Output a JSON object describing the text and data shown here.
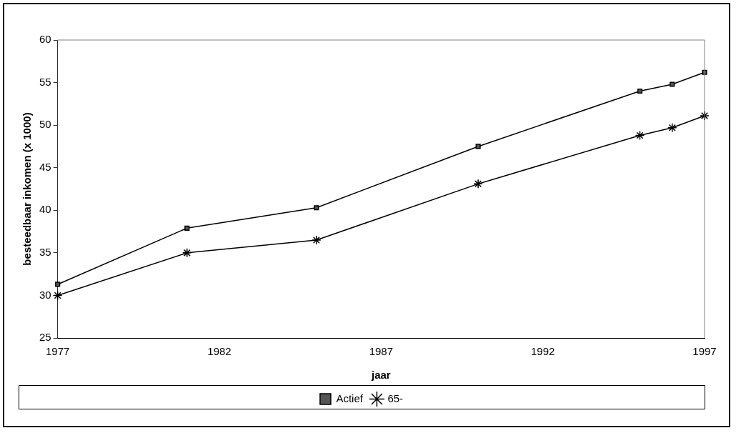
{
  "chart_data": {
    "type": "line",
    "xlabel": "jaar",
    "ylabel": "besteedbaar inkomen (x 1000)",
    "x": [
      1977,
      1981,
      1985,
      1990,
      1995,
      1996,
      1997
    ],
    "series": [
      {
        "name": "Actief",
        "color": "#000000",
        "marker": "square",
        "values": [
          31.3,
          37.9,
          40.3,
          47.5,
          54.0,
          54.8,
          56.2
        ]
      },
      {
        "name": "65-",
        "color": "#000000",
        "marker": "cross",
        "values": [
          30.0,
          35.0,
          36.5,
          43.1,
          48.8,
          49.7,
          51.1
        ]
      }
    ],
    "xlim": [
      1977,
      1997
    ],
    "xticks": [
      1977,
      1982,
      1987,
      1992,
      1997
    ],
    "ylim": [
      25,
      60
    ],
    "yticks": [
      25,
      30,
      35,
      40,
      45,
      50,
      55,
      60
    ],
    "grid": false,
    "legend": "bottom"
  }
}
